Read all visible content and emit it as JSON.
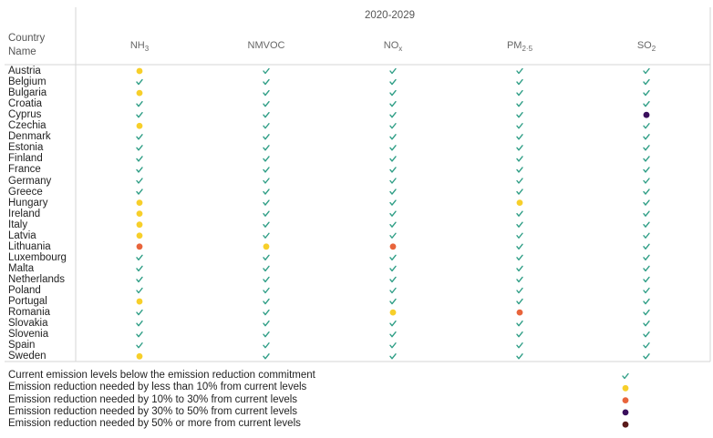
{
  "period_header": "2020-2029",
  "row_header_lines": [
    "Country",
    "Name"
  ],
  "colors": {
    "check": "#2f9e86",
    "lt10": "#f7cf2a",
    "p10_30": "#e8643b",
    "p30_50": "#3a0f5c",
    "ge50": "#5a1a1a",
    "grid": "#d6d6d6"
  },
  "chart_data": {
    "type": "table",
    "title": "2020-2029",
    "columns": [
      {
        "key": "NH3",
        "base": "NH",
        "sub": "3"
      },
      {
        "key": "NMVOC",
        "base": "NMVOC",
        "sub": ""
      },
      {
        "key": "NOx",
        "base": "NO",
        "sub": "x"
      },
      {
        "key": "PM25",
        "base": "PM",
        "sub": "2·5"
      },
      {
        "key": "SO2",
        "base": "SO",
        "sub": "2"
      }
    ],
    "countries": [
      "Austria",
      "Belgium",
      "Bulgaria",
      "Croatia",
      "Cyprus",
      "Czechia",
      "Denmark",
      "Estonia",
      "Finland",
      "France",
      "Germany",
      "Greece",
      "Hungary",
      "Ireland",
      "Italy",
      "Latvia",
      "Lithuania",
      "Luxembourg",
      "Malta",
      "Netherlands",
      "Poland",
      "Portugal",
      "Romania",
      "Slovakia",
      "Slovenia",
      "Spain",
      "Sweden"
    ],
    "status_codes": {
      "check": "Current emission levels below the emission reduction commitment",
      "lt10": "Emission reduction needed by less than 10% from current levels",
      "p10_30": "Emission reduction needed by 10% to 30% from current levels",
      "p30_50": "Emission reduction needed by 30% to 50% from current levels",
      "ge50": "Emission reduction needed by 50% or more from current levels"
    },
    "values": [
      [
        "lt10",
        "check",
        "check",
        "check",
        "check"
      ],
      [
        "check",
        "check",
        "check",
        "check",
        "check"
      ],
      [
        "lt10",
        "check",
        "check",
        "check",
        "check"
      ],
      [
        "check",
        "check",
        "check",
        "check",
        "check"
      ],
      [
        "check",
        "check",
        "check",
        "check",
        "p30_50"
      ],
      [
        "lt10",
        "check",
        "check",
        "check",
        "check"
      ],
      [
        "check",
        "check",
        "check",
        "check",
        "check"
      ],
      [
        "check",
        "check",
        "check",
        "check",
        "check"
      ],
      [
        "check",
        "check",
        "check",
        "check",
        "check"
      ],
      [
        "check",
        "check",
        "check",
        "check",
        "check"
      ],
      [
        "check",
        "check",
        "check",
        "check",
        "check"
      ],
      [
        "check",
        "check",
        "check",
        "check",
        "check"
      ],
      [
        "lt10",
        "check",
        "check",
        "lt10",
        "check"
      ],
      [
        "lt10",
        "check",
        "check",
        "check",
        "check"
      ],
      [
        "lt10",
        "check",
        "check",
        "check",
        "check"
      ],
      [
        "lt10",
        "check",
        "check",
        "check",
        "check"
      ],
      [
        "p10_30",
        "lt10",
        "p10_30",
        "check",
        "check"
      ],
      [
        "check",
        "check",
        "check",
        "check",
        "check"
      ],
      [
        "check",
        "check",
        "check",
        "check",
        "check"
      ],
      [
        "check",
        "check",
        "check",
        "check",
        "check"
      ],
      [
        "check",
        "check",
        "check",
        "check",
        "check"
      ],
      [
        "lt10",
        "check",
        "check",
        "check",
        "check"
      ],
      [
        "check",
        "check",
        "lt10",
        "p10_30",
        "check"
      ],
      [
        "check",
        "check",
        "check",
        "check",
        "check"
      ],
      [
        "check",
        "check",
        "check",
        "check",
        "check"
      ],
      [
        "check",
        "check",
        "check",
        "check",
        "check"
      ],
      [
        "lt10",
        "check",
        "check",
        "check",
        "check"
      ]
    ],
    "legend": [
      {
        "code": "check",
        "label": "Current emission levels below the emission reduction commitment"
      },
      {
        "code": "lt10",
        "label": "Emission reduction needed by less than 10% from current levels"
      },
      {
        "code": "p10_30",
        "label": "Emission reduction needed by 10% to 30% from current levels"
      },
      {
        "code": "p30_50",
        "label": "Emission reduction needed by 30% to 50% from current levels"
      },
      {
        "code": "ge50",
        "label": "Emission reduction needed by 50% or more from current levels"
      }
    ]
  }
}
